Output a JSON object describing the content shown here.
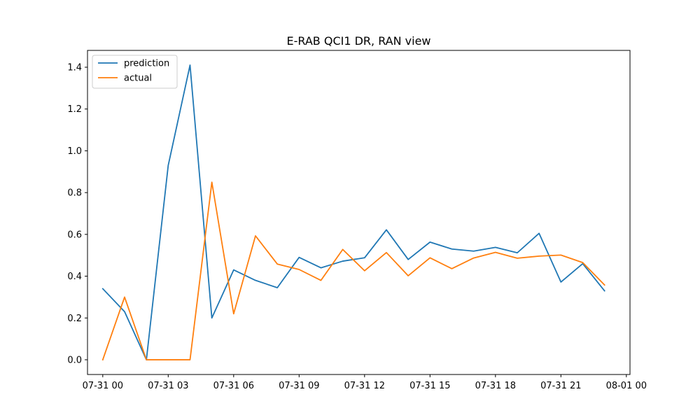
{
  "chart_data": {
    "type": "line",
    "title": "E-RAB QCI1 DR, RAN view",
    "xlabel": "",
    "ylabel": "",
    "x": [
      "07-31 00:00",
      "07-31 01:00",
      "07-31 02:00",
      "07-31 03:00",
      "07-31 04:00",
      "07-31 05:00",
      "07-31 06:00",
      "07-31 07:00",
      "07-31 08:00",
      "07-31 09:00",
      "07-31 10:00",
      "07-31 11:00",
      "07-31 12:00",
      "07-31 13:00",
      "07-31 14:00",
      "07-31 15:00",
      "07-31 16:00",
      "07-31 17:00",
      "07-31 18:00",
      "07-31 19:00",
      "07-31 20:00",
      "07-31 21:00",
      "07-31 22:00",
      "07-31 23:00"
    ],
    "series": [
      {
        "name": "prediction",
        "color": "#1f77b4",
        "values": [
          0.34,
          0.23,
          0.0,
          0.93,
          1.41,
          0.2,
          0.43,
          0.38,
          0.345,
          0.49,
          0.44,
          0.472,
          0.488,
          0.622,
          0.48,
          0.563,
          0.53,
          0.52,
          0.538,
          0.512,
          0.605,
          0.372,
          0.46,
          0.33
        ]
      },
      {
        "name": "actual",
        "color": "#ff7f0e",
        "values": [
          0.0,
          0.3,
          0.0,
          0.0,
          0.0,
          0.85,
          0.22,
          0.593,
          0.458,
          0.432,
          0.38,
          0.528,
          0.426,
          0.513,
          0.402,
          0.488,
          0.436,
          0.487,
          0.514,
          0.486,
          0.496,
          0.501,
          0.465,
          0.358
        ]
      }
    ],
    "xticks": [
      "07-31 00",
      "07-31 03",
      "07-31 06",
      "07-31 09",
      "07-31 12",
      "07-31 15",
      "07-31 18",
      "07-31 21",
      "08-01 00"
    ],
    "yticks": [
      "0.0",
      "0.2",
      "0.4",
      "0.6",
      "0.8",
      "1.0",
      "1.2",
      "1.4"
    ],
    "xlim": [
      "07-30 23:18",
      "08-01 00:10"
    ],
    "ylim": [
      -0.0705,
      1.4805
    ],
    "grid": false,
    "legend": "upper left"
  }
}
